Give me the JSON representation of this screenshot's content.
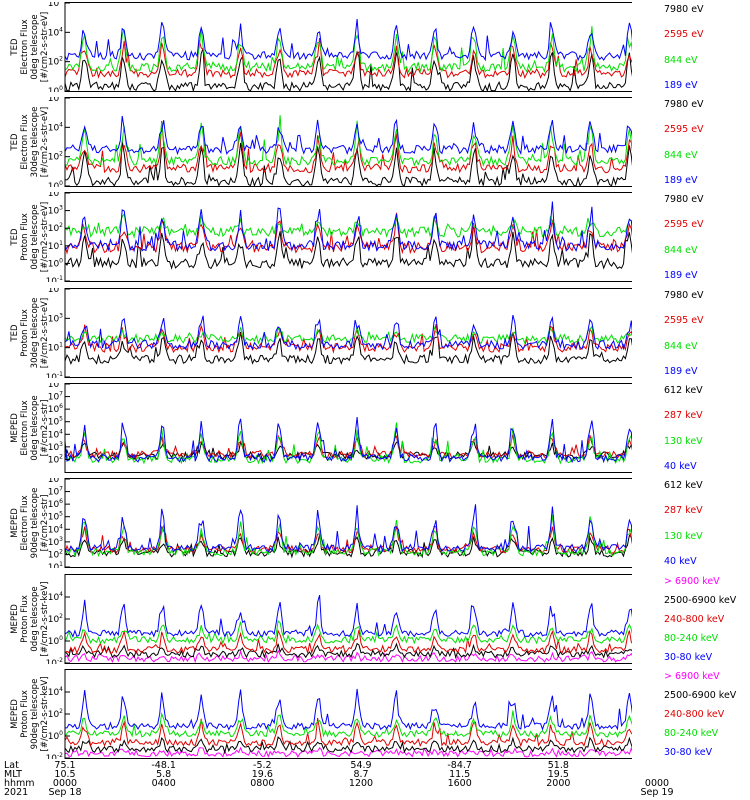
{
  "chart_data": [
    {
      "type": "line",
      "ylabel": [
        "TED",
        "Electron Flux",
        "0deg telescope",
        "[#/cm2-s-str-eV]"
      ],
      "yscale": "log",
      "ylim_exp": [
        0,
        6
      ],
      "tick_labels": [
        [
          "10",
          "0"
        ],
        [
          "10",
          "2"
        ],
        [
          "10",
          "4"
        ],
        [
          "10",
          "6"
        ]
      ],
      "series": [
        {
          "name": "7980 eV",
          "color": "#000000",
          "base": 0.3,
          "peak": 3.0
        },
        {
          "name": "2595 eV",
          "color": "#e00000",
          "base": 1.2,
          "peak": 3.6
        },
        {
          "name": "844 eV",
          "color": "#00e000",
          "base": 1.6,
          "peak": 4.4
        },
        {
          "name": "189 eV",
          "color": "#0000ff",
          "base": 2.4,
          "peak": 4.7
        }
      ]
    },
    {
      "type": "line",
      "ylabel": [
        "TED",
        "Electron Flux",
        "30deg telescope",
        "[#/cm2-s-str-eV]"
      ],
      "yscale": "log",
      "ylim_exp": [
        0,
        6
      ],
      "tick_labels": [
        [
          "10",
          "0"
        ],
        [
          "10",
          "2"
        ],
        [
          "10",
          "4"
        ],
        [
          "10",
          "6"
        ]
      ],
      "series": [
        {
          "name": "7980 eV",
          "color": "#000000",
          "base": 0.3,
          "peak": 3.0
        },
        {
          "name": "2595 eV",
          "color": "#e00000",
          "base": 1.2,
          "peak": 3.6
        },
        {
          "name": "844 eV",
          "color": "#00e000",
          "base": 1.7,
          "peak": 4.5
        },
        {
          "name": "189 eV",
          "color": "#0000ff",
          "base": 2.5,
          "peak": 4.9
        }
      ]
    },
    {
      "type": "line",
      "ylabel": [
        "TED",
        "Proton Flux",
        "0deg telescope",
        "[#/cm2-s-str-eV]"
      ],
      "yscale": "log",
      "ylim_exp": [
        -1,
        4
      ],
      "tick_labels": [
        [
          "10",
          "-1"
        ],
        [
          "10",
          "0"
        ],
        [
          "10",
          "1"
        ],
        [
          "10",
          "2"
        ],
        [
          "10",
          "3"
        ],
        [
          "10",
          "4"
        ]
      ],
      "series": [
        {
          "name": "7980 eV",
          "color": "#000000",
          "base": 0.0,
          "peak": 2.0
        },
        {
          "name": "2595 eV",
          "color": "#e00000",
          "base": 0.9,
          "peak": 2.7
        },
        {
          "name": "844 eV",
          "color": "#00e000",
          "base": 1.8,
          "peak": 2.6
        },
        {
          "name": "189 eV",
          "color": "#0000ff",
          "base": 1.0,
          "peak": 3.4
        }
      ]
    },
    {
      "type": "line",
      "ylabel": [
        "TED",
        "Proton Flux",
        "30deg telescope",
        "[#/cm2-s-str-eV]"
      ],
      "yscale": "log",
      "ylim_exp": [
        -1,
        5
      ],
      "tick_labels": [
        [
          "10",
          "-1"
        ],
        [
          "10",
          "1"
        ],
        [
          "10",
          "3"
        ],
        [
          "10",
          "5"
        ]
      ],
      "series": [
        {
          "name": "7980 eV",
          "color": "#000000",
          "base": 0.2,
          "peak": 2.0
        },
        {
          "name": "2595 eV",
          "color": "#e00000",
          "base": 1.0,
          "peak": 2.6
        },
        {
          "name": "844 eV",
          "color": "#00e000",
          "base": 1.6,
          "peak": 2.3
        },
        {
          "name": "189 eV",
          "color": "#0000ff",
          "base": 1.2,
          "peak": 3.3
        }
      ]
    },
    {
      "type": "line",
      "ylabel": [
        "MEPED",
        "Electron Flux",
        "0deg telescope",
        "[#/cm2-s-str]"
      ],
      "yscale": "log",
      "ylim_exp": [
        1,
        8
      ],
      "tick_labels": [
        [
          "10",
          "2"
        ],
        [
          "10",
          "3"
        ],
        [
          "10",
          "4"
        ],
        [
          "10",
          "5"
        ],
        [
          "10",
          "6"
        ],
        [
          "10",
          "7"
        ],
        [
          "10",
          "8"
        ]
      ],
      "series": [
        {
          "name": "612 keV",
          "color": "#000000",
          "base": 2.3,
          "peak": 3.4
        },
        {
          "name": "287 keV",
          "color": "#e00000",
          "base": 2.4,
          "peak": 4.0
        },
        {
          "name": "130 keV",
          "color": "#00e000",
          "base": 2.0,
          "peak": 4.6
        },
        {
          "name": "40 keV",
          "color": "#0000ff",
          "base": 2.1,
          "peak": 5.6
        }
      ]
    },
    {
      "type": "line",
      "ylabel": [
        "MEPED",
        "Electron Flux",
        "90deg telescope",
        "[#/cm2-s-str]"
      ],
      "yscale": "log",
      "ylim_exp": [
        1,
        8
      ],
      "tick_labels": [
        [
          "10",
          "1"
        ],
        [
          "10",
          "2"
        ],
        [
          "10",
          "3"
        ],
        [
          "10",
          "4"
        ],
        [
          "10",
          "5"
        ],
        [
          "10",
          "6"
        ],
        [
          "10",
          "7"
        ],
        [
          "10",
          "8"
        ]
      ],
      "series": [
        {
          "name": "612 keV",
          "color": "#000000",
          "base": 2.1,
          "peak": 3.6
        },
        {
          "name": "287 keV",
          "color": "#e00000",
          "base": 2.4,
          "peak": 4.3
        },
        {
          "name": "130 keV",
          "color": "#00e000",
          "base": 2.2,
          "peak": 5.0
        },
        {
          "name": "40 keV",
          "color": "#0000ff",
          "base": 2.5,
          "peak": 5.8
        }
      ]
    },
    {
      "type": "line",
      "ylabel": [
        "MEPED",
        "Proton Flux",
        "0deg telescope",
        "[#/cm2-s-str-keV]"
      ],
      "yscale": "log",
      "ylim_exp": [
        -2,
        6
      ],
      "tick_labels": [
        [
          "10",
          "-2"
        ],
        [
          "10",
          "0"
        ],
        [
          "10",
          "2"
        ],
        [
          "10",
          "4"
        ]
      ],
      "series": [
        {
          "name": "> 6900 keV",
          "color": "#ff00ff",
          "base": -1.6,
          "peak": -1.2
        },
        {
          "name": "2500-6900 keV",
          "color": "#000000",
          "base": -1.2,
          "peak": -0.4
        },
        {
          "name": "240-800 keV",
          "color": "#e00000",
          "base": -0.8,
          "peak": 1.0
        },
        {
          "name": "80-240 keV",
          "color": "#00e000",
          "base": 0.1,
          "peak": 1.6
        },
        {
          "name": "30-80 keV",
          "color": "#0000ff",
          "base": 0.7,
          "peak": 3.8
        }
      ]
    },
    {
      "type": "line",
      "ylabel": [
        "MEPED",
        "Proton Flux",
        "90deg telescope",
        "[#/cm2-s-str-keV]"
      ],
      "yscale": "log",
      "ylim_exp": [
        -2,
        6
      ],
      "tick_labels": [
        [
          "10",
          "-2"
        ],
        [
          "10",
          "0"
        ],
        [
          "10",
          "2"
        ],
        [
          "10",
          "4"
        ]
      ],
      "series": [
        {
          "name": "> 6900 keV",
          "color": "#ff00ff",
          "base": -1.6,
          "peak": -1.2
        },
        {
          "name": "2500-6900 keV",
          "color": "#000000",
          "base": -1.2,
          "peak": -0.2
        },
        {
          "name": "240-800 keV",
          "color": "#e00000",
          "base": -0.6,
          "peak": 1.4
        },
        {
          "name": "80-240 keV",
          "color": "#00e000",
          "base": 0.2,
          "peak": 2.2
        },
        {
          "name": "30-80 keV",
          "color": "#0000ff",
          "base": 0.9,
          "peak": 4.2
        }
      ]
    }
  ],
  "x_axis": {
    "rows": [
      "Lat",
      "MLT",
      "hhmm",
      "2021"
    ],
    "columns": [
      {
        "lat": "75.1",
        "mlt": "10.5",
        "hhmm": "0000",
        "date": "Sep 18"
      },
      {
        "lat": "-48.1",
        "mlt": "5.8",
        "hhmm": "0400",
        "date": ""
      },
      {
        "lat": "-5.2",
        "mlt": "19.6",
        "hhmm": "0800",
        "date": ""
      },
      {
        "lat": "54.9",
        "mlt": "8.7",
        "hhmm": "1200",
        "date": ""
      },
      {
        "lat": "-84.7",
        "mlt": "11.5",
        "hhmm": "1600",
        "date": ""
      },
      {
        "lat": "51.8",
        "mlt": "19.5",
        "hhmm": "2000",
        "date": ""
      },
      {
        "lat": "",
        "mlt": "",
        "hhmm": "0000",
        "date": "Sep 19"
      }
    ]
  }
}
